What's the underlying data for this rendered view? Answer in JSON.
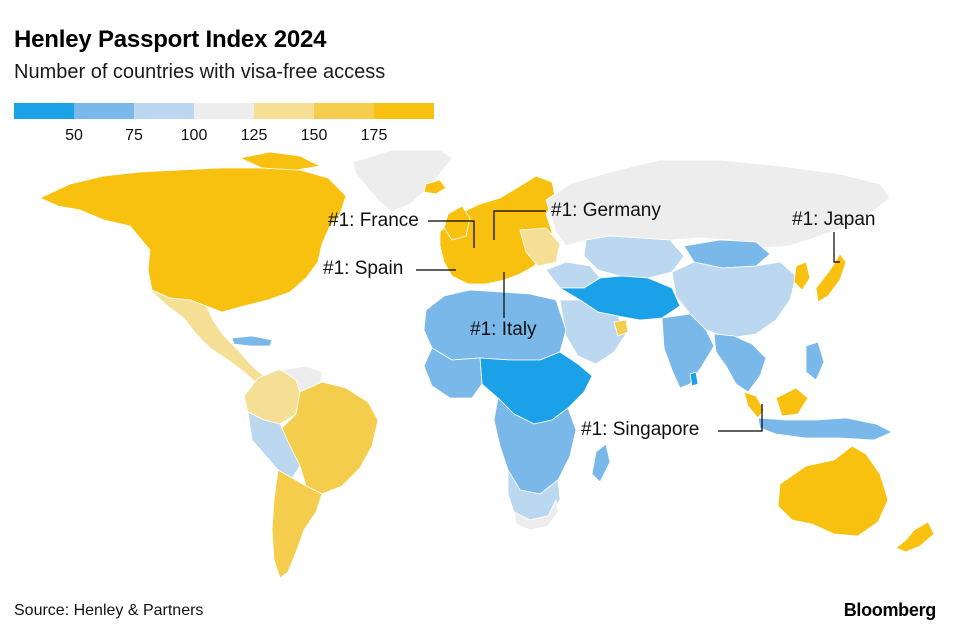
{
  "title": "Henley Passport Index 2024",
  "subtitle": "Number of countries with visa-free access",
  "legend": {
    "colors": [
      "#1ba1e8",
      "#7ab8ea",
      "#bcd7f0",
      "#ededed",
      "#f5df95",
      "#f4cd4c",
      "#f8c110"
    ],
    "ticks": [
      "50",
      "75",
      "100",
      "125",
      "150",
      "175"
    ]
  },
  "callouts": {
    "france": "#1: France",
    "germany": "#1: Germany",
    "japan": "#1: Japan",
    "spain": "#1: Spain",
    "italy": "#1: Italy",
    "singapore": "#1: Singapore"
  },
  "source": "Source: Henley & Partners",
  "brand": "Bloomberg"
}
